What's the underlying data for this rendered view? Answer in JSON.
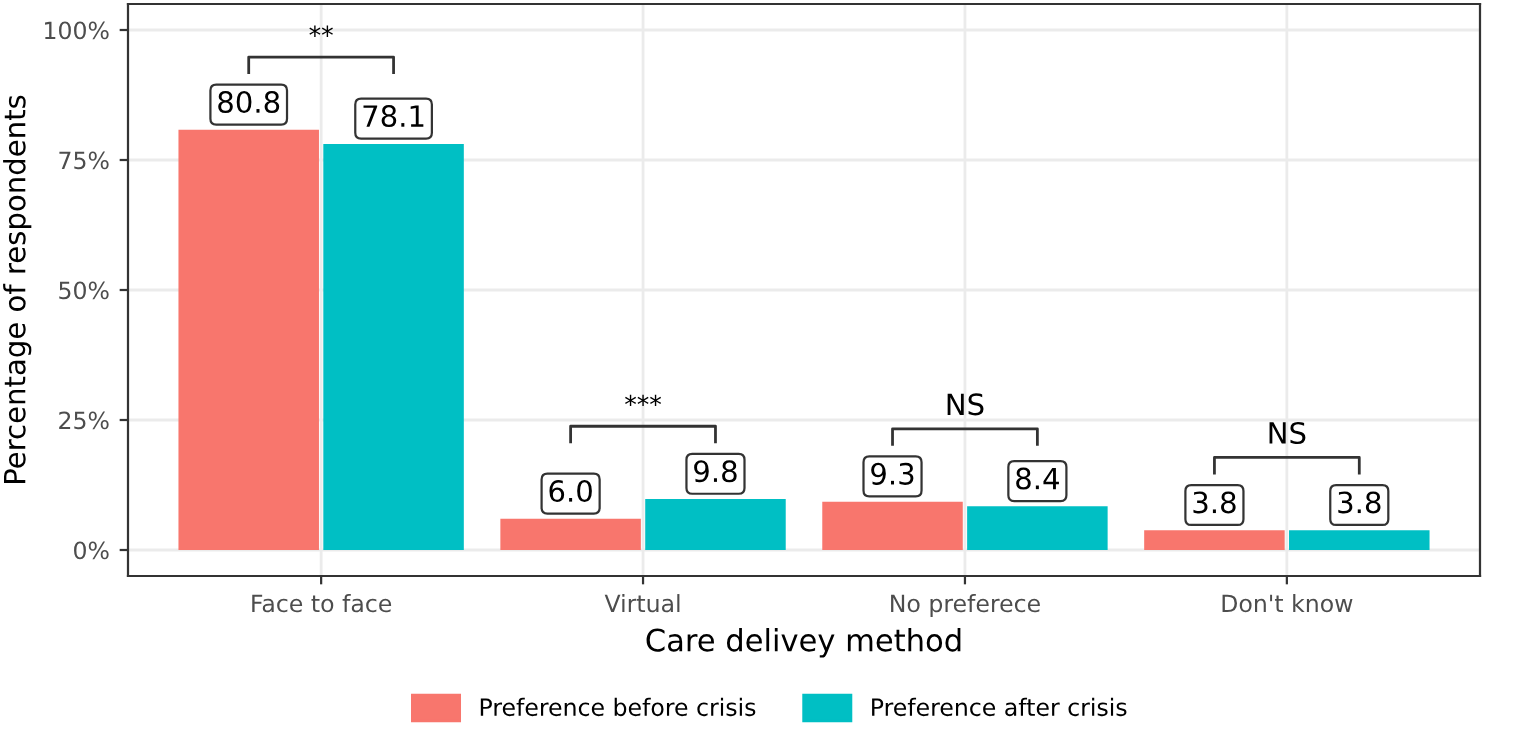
{
  "chart_data": {
    "type": "bar",
    "xlabel": "Care delivey method",
    "ylabel": "Percentage of respondents",
    "categories": [
      "Face to face",
      "Virtual",
      "No preferece",
      "Don't know"
    ],
    "series": [
      {
        "name": "Preference before crisis",
        "color": "#f8766d",
        "values": [
          80.8,
          6.0,
          9.3,
          3.8
        ],
        "value_labels": [
          "80.8",
          "6.0",
          "9.3",
          "3.8"
        ]
      },
      {
        "name": "Preference after crisis",
        "color": "#00bfc4",
        "values": [
          78.1,
          9.8,
          8.4,
          3.8
        ],
        "value_labels": [
          "78.1",
          "9.8",
          "8.4",
          "3.8"
        ]
      }
    ],
    "ylim": [
      -5,
      105
    ],
    "yticks": [
      {
        "value": 0,
        "label": "0%"
      },
      {
        "value": 25,
        "label": "25%"
      },
      {
        "value": 50,
        "label": "50%"
      },
      {
        "value": 75,
        "label": "75%"
      },
      {
        "value": 100,
        "label": "100%"
      }
    ],
    "annotations": [
      "**",
      "***",
      "NS",
      "NS"
    ],
    "grid": true,
    "legend": "bottom"
  }
}
